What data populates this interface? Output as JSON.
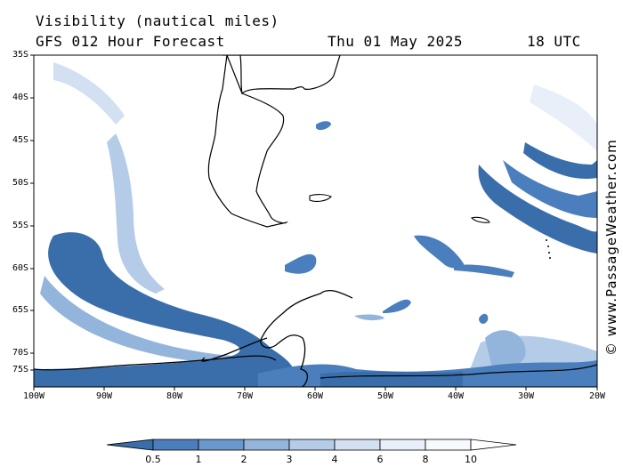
{
  "header": {
    "title": "Visibility (nautical miles)",
    "model": "GFS 012 Hour Forecast",
    "date": "Thu 01 May 2025",
    "time": "18 UTC"
  },
  "map": {
    "latitude_labels": [
      "35S",
      "40S",
      "45S",
      "50S",
      "55S",
      "60S",
      "65S",
      "70S",
      "75S"
    ],
    "longitude_labels": [
      "100W",
      "90W",
      "80W",
      "70W",
      "60W",
      "50W",
      "40W",
      "30W",
      "20W"
    ],
    "colors": {
      "land_outline": "#000000",
      "vis_0_5": "#3a6eaa",
      "vis_1": "#4a7ebc",
      "vis_2": "#6b98cc",
      "vis_3": "#93b5dc",
      "vis_4": "#b5cce8",
      "vis_6": "#d2e0f2",
      "vis_8": "#e8eff9",
      "vis_10": "#ffffff"
    }
  },
  "colorbar": {
    "labels": [
      "0.5",
      "1",
      "2",
      "3",
      "4",
      "6",
      "8",
      "10"
    ],
    "colors": [
      "#3a6eaa",
      "#4a7ebc",
      "#6b98cc",
      "#93b5dc",
      "#b5cce8",
      "#d2e0f2",
      "#e8eff9",
      "#ffffff"
    ]
  },
  "watermark": "© www.PassageWeather.com"
}
